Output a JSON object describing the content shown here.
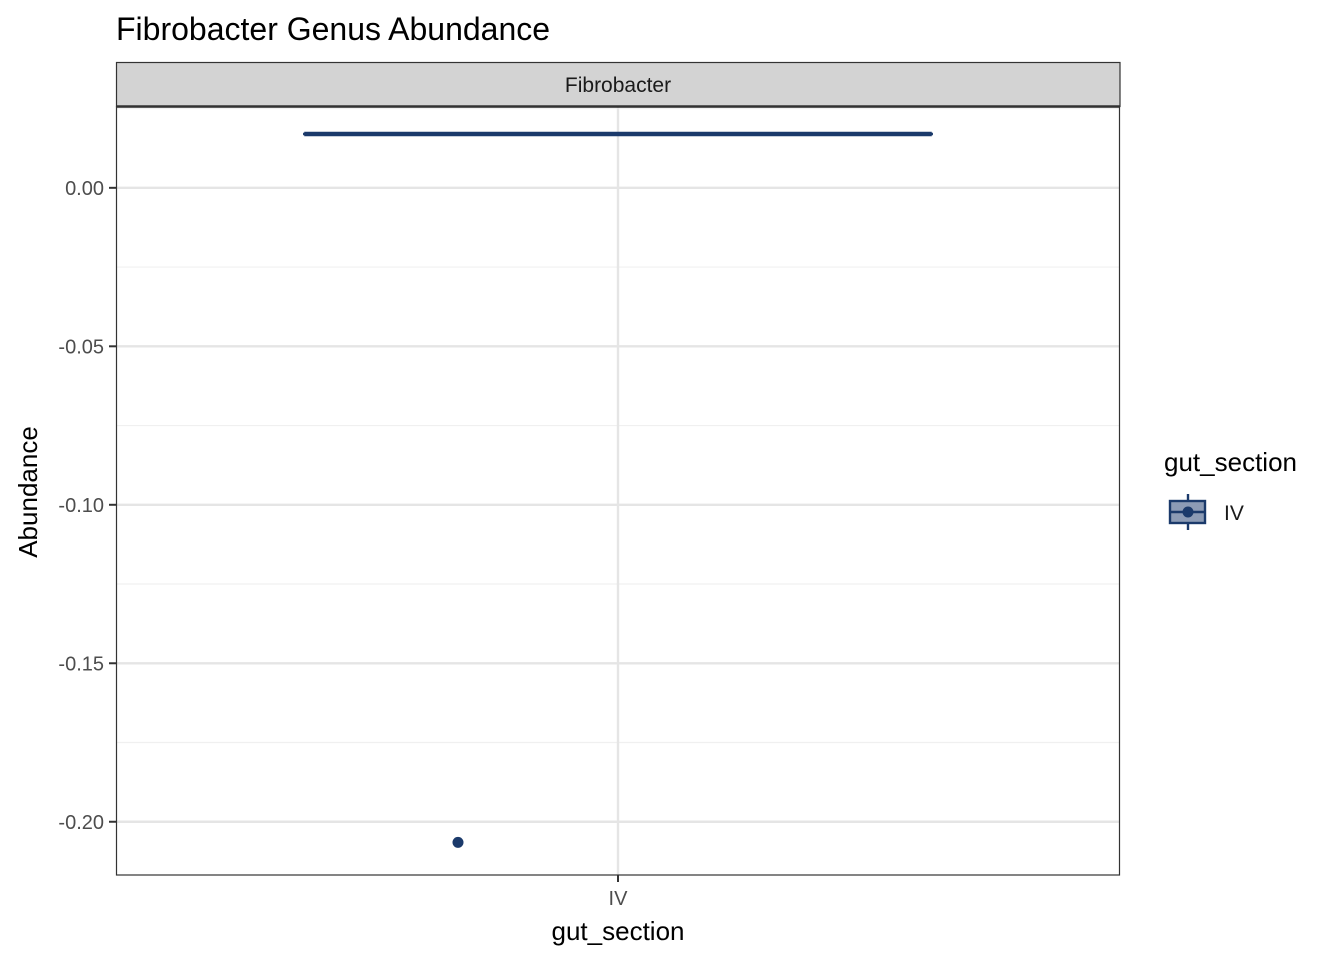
{
  "colors": {
    "series": "#1b3a6b",
    "series_fill": "#8c9bb5",
    "strip_fill": "#d3d3d3",
    "grid_major": "#e5e5e5",
    "grid_minor": "#f0f0f0",
    "panel_border": "#333333"
  },
  "chart_data": {
    "type": "boxplot",
    "title": "Fibrobacter Genus Abundance",
    "facet": "Fibrobacter",
    "xlabel": "gut_section",
    "ylabel": "Abundance",
    "categories": [
      "IV"
    ],
    "ylim": [
      -0.2168,
      0.0255
    ],
    "yticks": [
      0.0,
      -0.05,
      -0.1,
      -0.15,
      -0.2
    ],
    "ytick_labels": [
      "0.00",
      "-0.05",
      "-0.10",
      "-0.15",
      "-0.20"
    ],
    "grid": true,
    "legend": {
      "title": "gut_section",
      "position": "right",
      "entries": [
        "IV"
      ]
    },
    "series": [
      {
        "category": "IV",
        "box": {
          "min": 0.017,
          "q1": 0.017,
          "median": 0.017,
          "q3": 0.017,
          "max": 0.017
        },
        "outliers": [
          -0.2065
        ]
      }
    ]
  }
}
